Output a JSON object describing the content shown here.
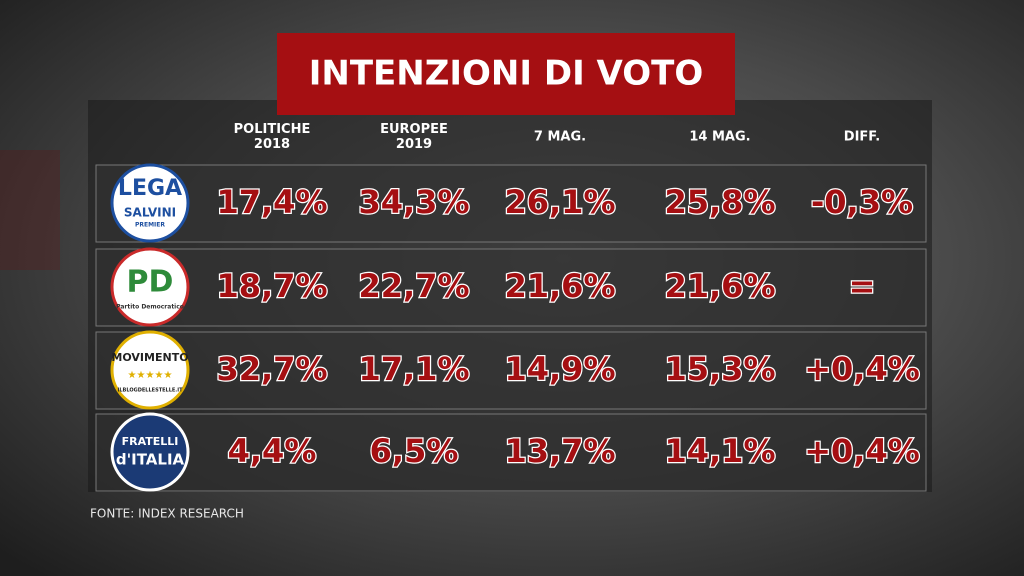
{
  "title": "INTENZIONI DI VOTO",
  "table": {
    "headers": [
      [
        "POLITICHE",
        "2018"
      ],
      [
        "EUROPEE",
        "2019"
      ],
      [
        "7 MAG."
      ],
      [
        "14 MAG."
      ],
      [
        "DIFF."
      ]
    ],
    "rows": [
      {
        "logo": [
          "LEGA",
          "SALVINI",
          "PREMIER"
        ],
        "cells": [
          "17,4%",
          "34,3%",
          "26,1%",
          "25,8%",
          "-0,3%"
        ]
      },
      {
        "logo": [
          "PD",
          "Partito Democratico"
        ],
        "cells": [
          "18,7%",
          "22,7%",
          "21,6%",
          "21,6%",
          "="
        ]
      },
      {
        "logo": [
          "MOVIMENTO",
          "ILBLOGDELLESTELLE.IT"
        ],
        "cells": [
          "32,7%",
          "17,1%",
          "14,9%",
          "15,3%",
          "+0,4%"
        ]
      },
      {
        "logo": [
          "FRATELLI",
          "d'ITALIA"
        ],
        "cells": [
          "4,4%",
          "6,5%",
          "13,7%",
          "14,1%",
          "+0,4%"
        ]
      }
    ]
  },
  "source": "FONTE: INDEX RESEARCH"
}
